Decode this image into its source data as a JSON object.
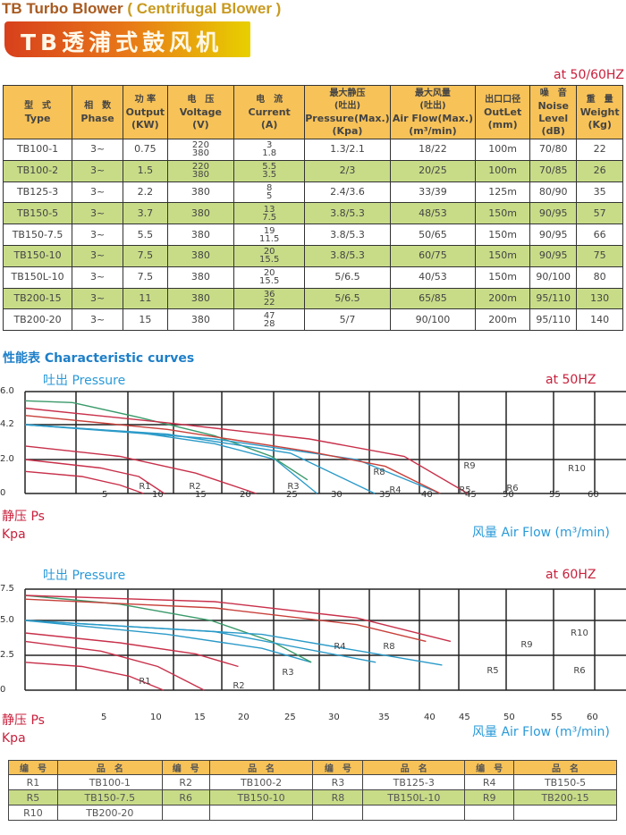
{
  "header": {
    "title_en": "TB Turbo Blower",
    "title_sub": "( Centrifugal Blower )",
    "banner": "TB透浦式鼓风机",
    "freq_note": "at  50/60HZ"
  },
  "spec_table": {
    "columns": [
      {
        "zh": "型　式",
        "en": "Type"
      },
      {
        "zh": "相　数",
        "en": "Phase"
      },
      {
        "zh": "功 率",
        "en": "Output",
        "unit": "(KW)"
      },
      {
        "zh": "电　压",
        "en": "Voltage",
        "unit": "(V)"
      },
      {
        "zh": "电　流",
        "en": "Current",
        "unit": "(A)"
      },
      {
        "zh": "最大静压",
        "zh2": "(吐出)",
        "en": "Pressure(Max.)",
        "unit": "(Kpa)"
      },
      {
        "zh": "最大风量",
        "zh2": "(吐出)",
        "en": "Air Flow(Max.)",
        "unit": "(m³/min)"
      },
      {
        "zh": "出口口径",
        "en": "OutLet",
        "unit": "(mm)"
      },
      {
        "zh": "噪　音",
        "en": "Noise Level",
        "unit": "(dB)"
      },
      {
        "zh": "重　量",
        "en": "Weight",
        "unit": "(Kg)"
      }
    ],
    "rows": [
      [
        "TB100-1",
        "3~",
        "0.75",
        [
          "220",
          "380"
        ],
        [
          "3",
          "1.8"
        ],
        "1.3/2.1",
        "18/22",
        "100m",
        "70/80",
        "22"
      ],
      [
        "TB100-2",
        "3~",
        "1.5",
        [
          "220",
          "380"
        ],
        [
          "5.5",
          "3.5"
        ],
        "2/3",
        "20/25",
        "100m",
        "70/85",
        "26"
      ],
      [
        "TB125-3",
        "3~",
        "2.2",
        "380",
        [
          "8",
          "5"
        ],
        "2.4/3.6",
        "33/39",
        "125m",
        "80/90",
        "35"
      ],
      [
        "TB150-5",
        "3~",
        "3.7",
        "380",
        [
          "13",
          "7.5"
        ],
        "3.8/5.3",
        "48/53",
        "150m",
        "90/95",
        "57"
      ],
      [
        "TB150-7.5",
        "3~",
        "5.5",
        "380",
        [
          "19",
          "11.5"
        ],
        "3.8/5.3",
        "50/65",
        "150m",
        "90/95",
        "66"
      ],
      [
        "TB150-10",
        "3~",
        "7.5",
        "380",
        [
          "20",
          "15.5"
        ],
        "3.8/5.3",
        "60/75",
        "150m",
        "90/95",
        "75"
      ],
      [
        "TB150L-10",
        "3~",
        "7.5",
        "380",
        [
          "20",
          "15.5"
        ],
        "5/6.5",
        "40/53",
        "150m",
        "90/100",
        "80"
      ],
      [
        "TB200-15",
        "3~",
        "11",
        "380",
        [
          "36",
          "22"
        ],
        "5/6.5",
        "65/85",
        "200m",
        "95/110",
        "130"
      ],
      [
        "TB200-20",
        "3~",
        "15",
        "380",
        [
          "47",
          "28"
        ],
        "5/7",
        "90/100",
        "200m",
        "95/110",
        "140"
      ]
    ]
  },
  "curves_title": "性能表  Characteristic curves",
  "chart_data": [
    {
      "type": "line",
      "title": "at  50HZ",
      "ylabel_top": "吐出 Pressure",
      "ylabel_zh": "静压 Ps",
      "ylabel_unit": "Kpa",
      "xlabel": "风量  Air Flow (m³/min)",
      "yticks": [
        "6.0",
        "4.2",
        "2.0",
        "0"
      ],
      "yvals": [
        6,
        4.2,
        2,
        0
      ],
      "xticks": [
        "5",
        "10",
        "15",
        "20",
        "25",
        "30",
        "35",
        "40",
        "45",
        "50",
        "55",
        "60"
      ],
      "grid": true,
      "series": [
        {
          "name": "R1",
          "color": "#c8304a",
          "points": [
            [
              0,
              1.3
            ],
            [
              6,
              1.0
            ],
            [
              10,
              0.5
            ],
            [
              12.5,
              0
            ]
          ]
        },
        {
          "name": "R2",
          "color": "#c8304a",
          "points": [
            [
              0,
              2.0
            ],
            [
              8,
              1.5
            ],
            [
              12,
              1.0
            ],
            [
              14.7,
              0
            ]
          ]
        },
        {
          "name": "R3",
          "color": "#c8304a",
          "points": [
            [
              0,
              2.85
            ],
            [
              10,
              2.2
            ],
            [
              18,
              1.2
            ],
            [
              24.4,
              0
            ]
          ]
        },
        {
          "name": "R4",
          "color": "#2a9ac8",
          "points": [
            [
              0,
              4.2
            ],
            [
              12,
              3.7
            ],
            [
              20,
              3.0
            ],
            [
              26.4,
              2.0
            ],
            [
              30.8,
              0
            ]
          ]
        },
        {
          "name": "R8",
          "color": "#3a9a6a",
          "points": [
            [
              0,
              5.5
            ],
            [
              5,
              5.4
            ],
            [
              12,
              4.6
            ],
            [
              20,
              3.5
            ],
            [
              26,
              2.2
            ],
            [
              29.8,
              0.8
            ]
          ]
        },
        {
          "name": "R5",
          "color": "#2a9ac8",
          "points": [
            [
              0,
              4.2
            ],
            [
              15,
              3.6
            ],
            [
              28,
              2.4
            ],
            [
              36.9,
              0
            ]
          ]
        },
        {
          "name": "R6",
          "color": "#2a9ac8",
          "points": [
            [
              0,
              4.2
            ],
            [
              20,
              3.3
            ],
            [
              35,
              2.0
            ],
            [
              43.8,
              0
            ]
          ]
        },
        {
          "name": "R9",
          "color": "#c8403a",
          "points": [
            [
              0,
              4.7
            ],
            [
              15,
              3.9
            ],
            [
              30,
              2.5
            ],
            [
              38,
              1.6
            ],
            [
              43.8,
              0
            ]
          ]
        },
        {
          "name": "R10",
          "color": "#c8304a",
          "points": [
            [
              0,
              5.1
            ],
            [
              15,
              4.3
            ],
            [
              30,
              3.3
            ],
            [
              40,
              2.2
            ],
            [
              46.7,
              0
            ]
          ]
        }
      ]
    },
    {
      "type": "line",
      "title": "at  60HZ",
      "ylabel_top": "吐出 Pressure",
      "ylabel_zh": "静压 Ps",
      "ylabel_unit": "Kpa",
      "xlabel": "风量  Air Flow (m³/min)",
      "yticks": [
        "7.5",
        "5.0",
        "2.5",
        "0"
      ],
      "yvals": [
        7.5,
        5,
        2.5,
        0
      ],
      "xticks": [
        "5",
        "10",
        "15",
        "20",
        "25",
        "30",
        "35",
        "40",
        "45",
        "50",
        "55",
        "60"
      ],
      "grid": true,
      "series": [
        {
          "name": "R1",
          "color": "#c8304a",
          "points": [
            [
              0,
              2.0
            ],
            [
              6,
              1.7
            ],
            [
              11,
              1.0
            ],
            [
              14.6,
              0
            ]
          ]
        },
        {
          "name": "R2",
          "color": "#c8304a",
          "points": [
            [
              0,
              3.5
            ],
            [
              8,
              2.8
            ],
            [
              14,
              1.7
            ],
            [
              18.9,
              0
            ]
          ]
        },
        {
          "name": "R3",
          "color": "#c8304a",
          "points": [
            [
              0,
              4.1
            ],
            [
              10,
              3.4
            ],
            [
              18,
              2.6
            ],
            [
              22.5,
              1.7
            ]
          ]
        },
        {
          "name": "R4",
          "color": "#2a9ac8",
          "points": [
            [
              0,
              5.0
            ],
            [
              15,
              4.0
            ],
            [
              25,
              3.0
            ],
            [
              30.2,
              2.0
            ]
          ]
        },
        {
          "name": "R8",
          "color": "#3a9a6a",
          "points": [
            [
              0,
              7.0
            ],
            [
              10,
              6.3
            ],
            [
              19.6,
              5.0
            ],
            [
              26,
              3.5
            ],
            [
              30.2,
              2.0
            ]
          ]
        },
        {
          "name": "R5",
          "color": "#2a9ac8",
          "points": [
            [
              0,
              5.0
            ],
            [
              20,
              4.2
            ],
            [
              37,
              2.0
            ]
          ]
        },
        {
          "name": "R6",
          "color": "#2a9ac8",
          "points": [
            [
              0,
              5.0
            ],
            [
              25,
              4.0
            ],
            [
              44,
              1.8
            ]
          ]
        },
        {
          "name": "R9",
          "color": "#c8403a",
          "points": [
            [
              0,
              6.7
            ],
            [
              20,
              6.0
            ],
            [
              35,
              4.7
            ],
            [
              42.3,
              3.5
            ]
          ]
        },
        {
          "name": "R10",
          "color": "#c8304a",
          "points": [
            [
              0,
              7.0
            ],
            [
              20,
              6.5
            ],
            [
              35,
              5.2
            ],
            [
              44.9,
              3.5
            ]
          ]
        }
      ]
    }
  ],
  "legend_table": {
    "header": [
      "编　号",
      "品　名"
    ],
    "rows": [
      [
        [
          "R1",
          "TB100-1"
        ],
        [
          "R2",
          "TB100-2"
        ],
        [
          "R3",
          "TB125-3"
        ],
        [
          "R4",
          "TB150-5"
        ]
      ],
      [
        [
          "R5",
          "TB150-7.5"
        ],
        [
          "R6",
          "TB150-10"
        ],
        [
          "R8",
          "TB150L-10"
        ],
        [
          "R9",
          "TB200-15"
        ]
      ],
      [
        [
          "R10",
          "TB200-20"
        ],
        [
          "",
          ""
        ],
        [
          "",
          ""
        ],
        [
          "",
          ""
        ]
      ]
    ]
  }
}
